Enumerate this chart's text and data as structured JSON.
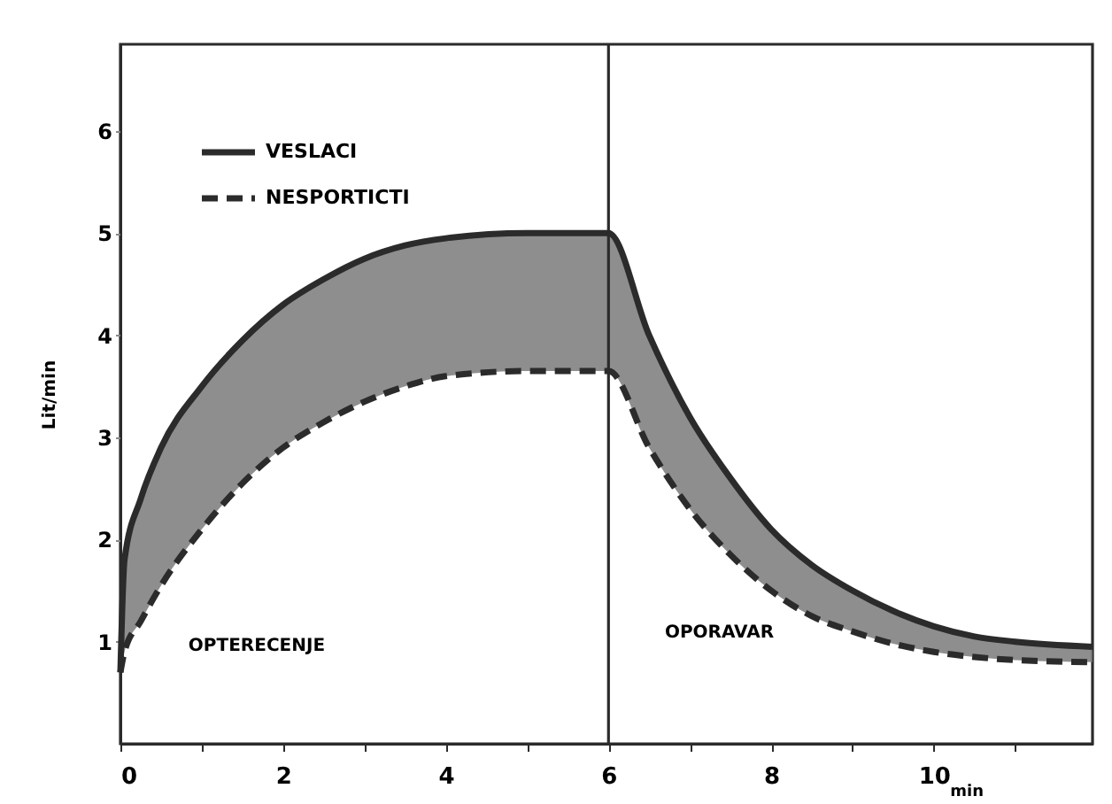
{
  "chart_data": {
    "type": "line",
    "xlabel": "min",
    "ylabel": "Lit/min",
    "annotations": [
      "OPTERECENJE",
      "OPORAVAR"
    ],
    "xlim": [
      0,
      11.95
    ],
    "ylim": [
      0,
      6.85
    ],
    "xticks": [
      0,
      {
        "value": 1,
        "label": null
      },
      2,
      {
        "value": 3,
        "label": null
      },
      4,
      {
        "value": 5,
        "label": null
      },
      6,
      {
        "value": 7,
        "label": null
      },
      8,
      {
        "value": 9,
        "label": null
      },
      10,
      {
        "value": 11,
        "label": null
      }
    ],
    "yticks": [
      1,
      2,
      3,
      4,
      5,
      6
    ],
    "x": [
      0,
      0.05,
      0.25,
      0.5,
      1,
      1.5,
      2,
      2.5,
      3,
      3.5,
      4,
      5,
      6,
      6.5,
      7,
      7.5,
      8,
      8.5,
      9,
      9.5,
      10,
      10.5,
      11,
      11.95
    ],
    "series": [
      {
        "name": "VESLACI",
        "color": "#2b2b2b",
        "line_style": "solid",
        "values": [
          0.7,
          1.8,
          2.4,
          2.9,
          3.5,
          3.95,
          4.3,
          4.55,
          4.75,
          4.88,
          4.95,
          5.0,
          5.0,
          4.0,
          3.2,
          2.6,
          2.1,
          1.75,
          1.5,
          1.3,
          1.15,
          1.05,
          1.0,
          0.95
        ]
      },
      {
        "name": "NESPORTICTI",
        "color": "#2b2b2b",
        "line_style": "dashed",
        "values": [
          0.7,
          0.9,
          1.2,
          1.55,
          2.1,
          2.55,
          2.9,
          3.15,
          3.35,
          3.5,
          3.6,
          3.65,
          3.65,
          2.9,
          2.3,
          1.85,
          1.5,
          1.25,
          1.1,
          0.98,
          0.9,
          0.85,
          0.82,
          0.8
        ]
      }
    ],
    "ref_lines": [
      {
        "axis": "x",
        "value": 6,
        "color": "#2b2b2b"
      }
    ],
    "legend": "top left",
    "grid": false,
    "marker": "none"
  }
}
